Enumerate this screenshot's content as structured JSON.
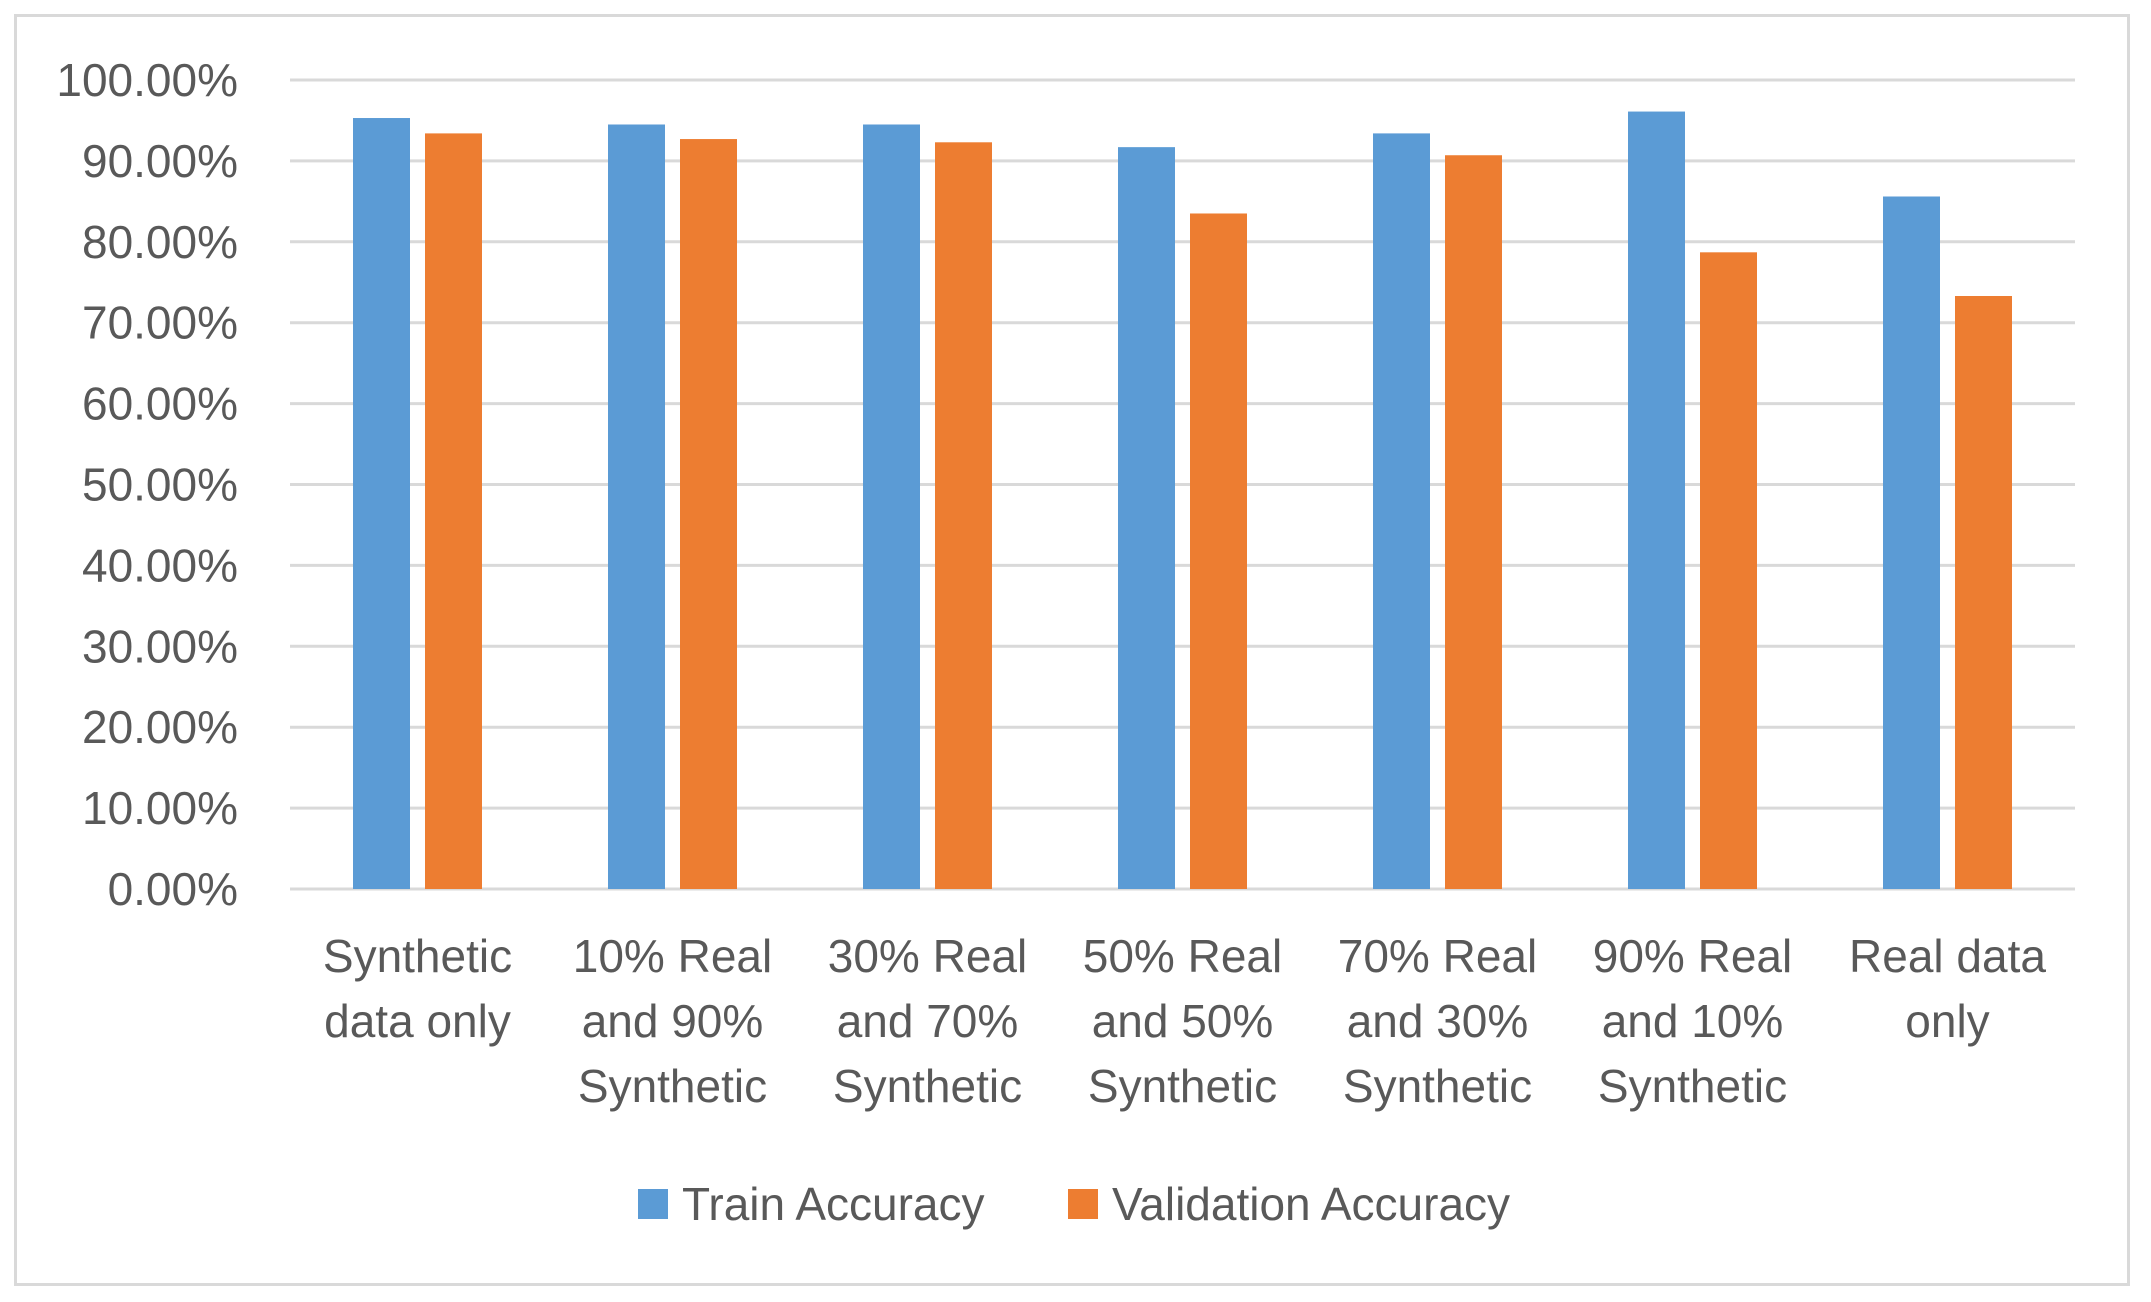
{
  "chart_data": {
    "type": "bar",
    "title": "",
    "xlabel": "",
    "ylabel": "",
    "ylim": [
      0,
      1
    ],
    "yticks": [
      0,
      0.1,
      0.2,
      0.3,
      0.4,
      0.5,
      0.6,
      0.7,
      0.8,
      0.9,
      1.0
    ],
    "ytick_labels": [
      "0.00%",
      "10.00%",
      "20.00%",
      "30.00%",
      "40.00%",
      "50.00%",
      "60.00%",
      "70.00%",
      "80.00%",
      "90.00%",
      "100.00%"
    ],
    "categories": [
      [
        "Synthetic",
        "data only"
      ],
      [
        "10% Real",
        "and 90%",
        "Synthetic"
      ],
      [
        "30% Real",
        "and 70%",
        "Synthetic"
      ],
      [
        "50% Real",
        "and 50%",
        "Synthetic"
      ],
      [
        "70% Real",
        "and 30%",
        "Synthetic"
      ],
      [
        "90% Real",
        "and 10%",
        "Synthetic"
      ],
      [
        "Real data",
        "only"
      ]
    ],
    "series": [
      {
        "name": "Train Accuracy",
        "color": "#5b9bd5",
        "values": [
          0.953,
          0.945,
          0.945,
          0.917,
          0.934,
          0.961,
          0.856
        ]
      },
      {
        "name": "Validation Accuracy",
        "color": "#ed7d31",
        "values": [
          0.934,
          0.927,
          0.923,
          0.835,
          0.907,
          0.787,
          0.733
        ]
      }
    ],
    "grid": true,
    "gridline_color": "#d9d9d9",
    "legend_position": "bottom"
  }
}
